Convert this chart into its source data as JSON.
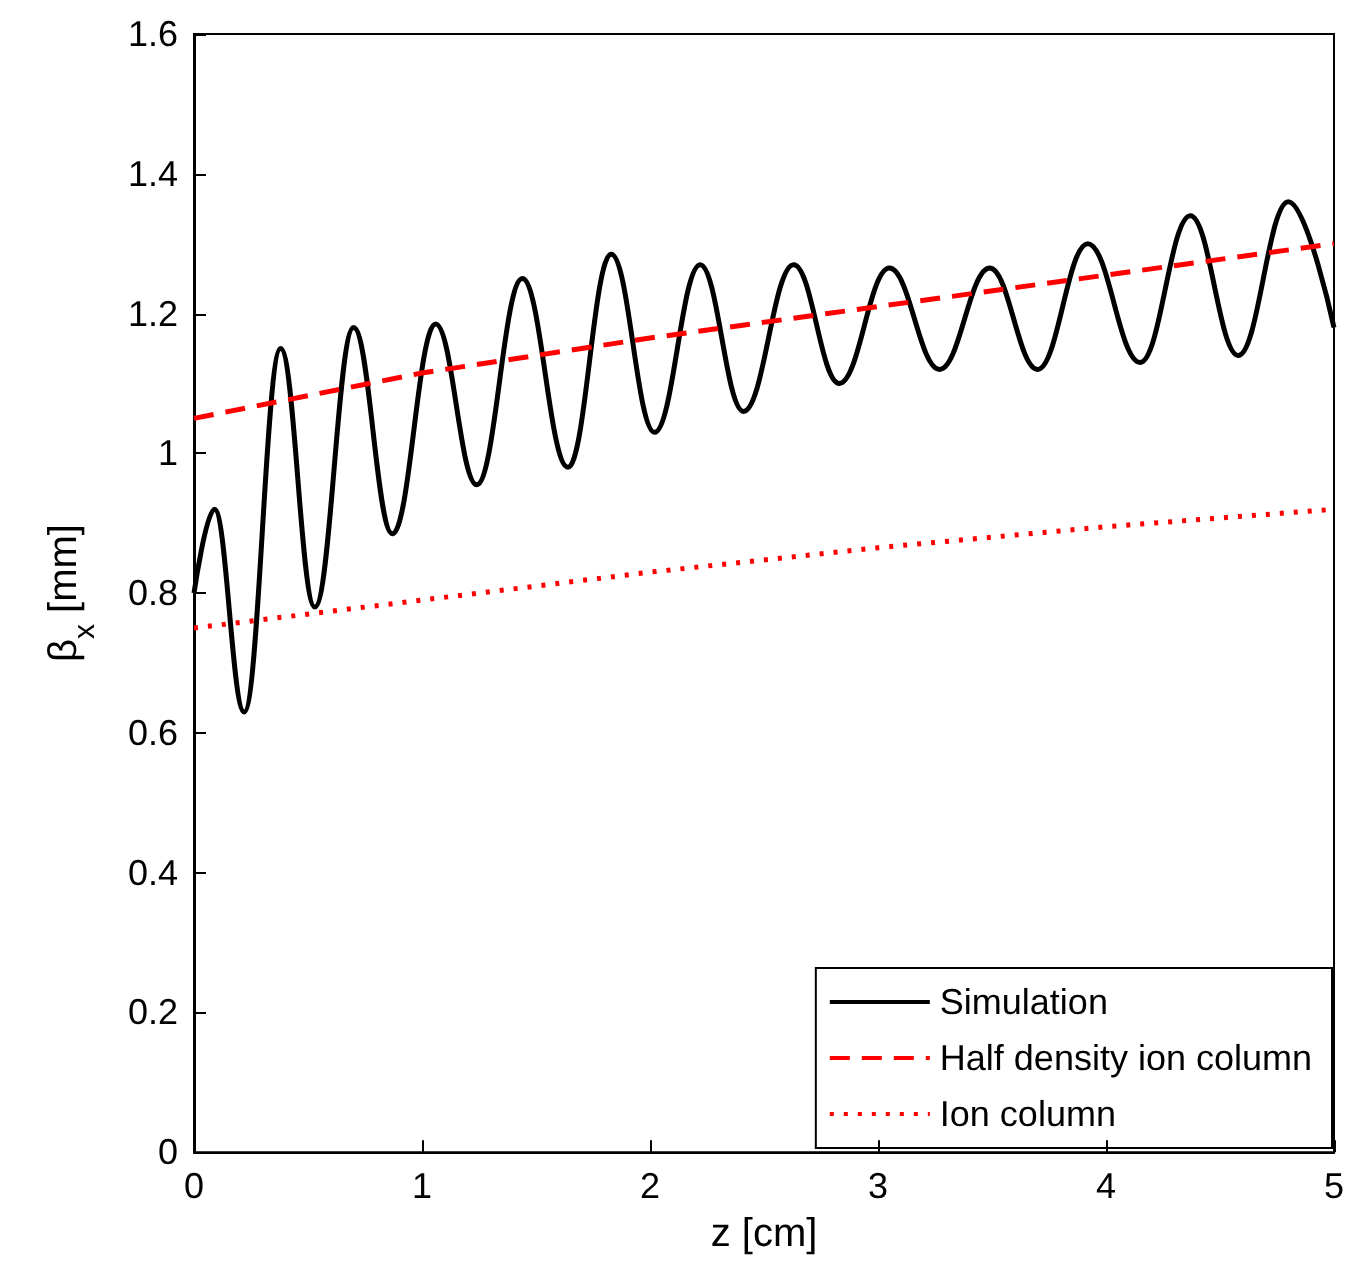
{
  "chart_data": {
    "type": "line",
    "xlabel": "z [cm]",
    "ylabel": "β$_{x}$ [mm]",
    "xlim": [
      0,
      5
    ],
    "xticks": [
      0,
      1,
      2,
      3,
      4,
      5
    ],
    "ylim": [
      0,
      1.6
    ],
    "yticks": [
      0,
      0.2,
      0.4,
      0.6,
      0.8,
      1,
      1.2,
      1.4,
      1.6
    ],
    "grid": false,
    "legend": "bottom right",
    "marker": "none",
    "series": [
      {
        "name": "Simulation",
        "color": "#000000",
        "line_style": "solid",
        "x": [
          0,
          0.09,
          0.22,
          0.38,
          0.53,
          0.7,
          0.87,
          1.06,
          1.24,
          1.44,
          1.64,
          1.83,
          2.02,
          2.22,
          2.41,
          2.63,
          2.83,
          3.05,
          3.27,
          3.49,
          3.7,
          3.92,
          4.15,
          4.37,
          4.58,
          4.8,
          5
        ],
        "values": [
          0.8,
          0.92,
          0.63,
          1.15,
          0.78,
          1.18,
          0.885,
          1.185,
          0.955,
          1.25,
          0.98,
          1.285,
          1.03,
          1.27,
          1.06,
          1.27,
          1.1,
          1.265,
          1.12,
          1.265,
          1.12,
          1.3,
          1.13,
          1.34,
          1.14,
          1.36,
          1.18
        ]
      },
      {
        "name": "Half density ion column",
        "color": "#ff0000",
        "line_style": "dashed",
        "x": [
          0,
          1,
          2,
          3,
          4,
          5
        ],
        "values": [
          1.05,
          1.115,
          1.165,
          1.21,
          1.255,
          1.3
        ]
      },
      {
        "name": "Ion column",
        "color": "#ff0000",
        "line_style": "dotted",
        "x": [
          0,
          1,
          2,
          3,
          4,
          5
        ],
        "values": [
          0.75,
          0.79,
          0.83,
          0.865,
          0.895,
          0.92
        ]
      }
    ]
  }
}
